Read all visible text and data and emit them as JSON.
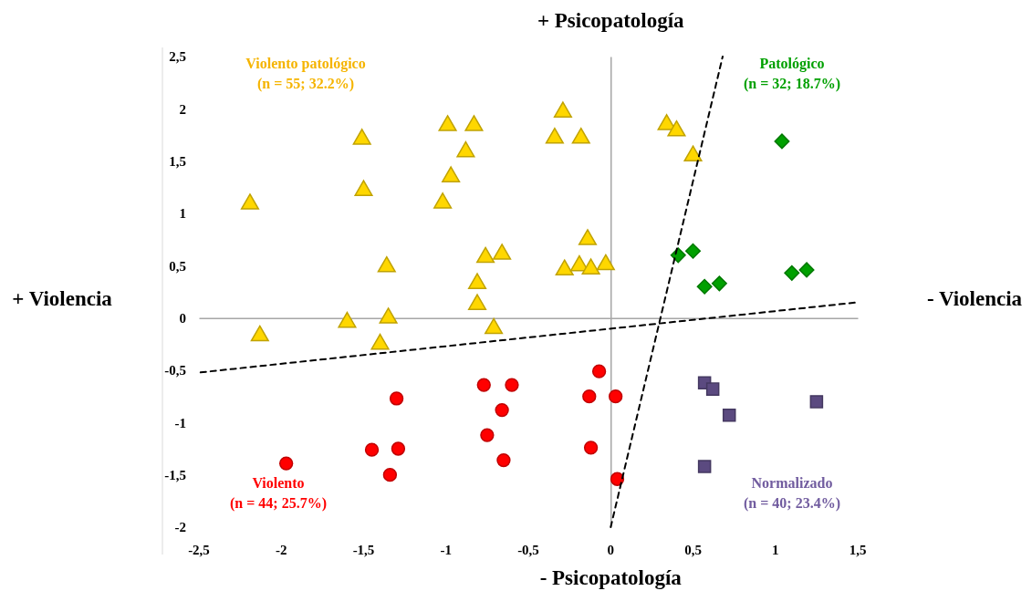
{
  "chart_data": {
    "type": "scatter",
    "annotations": [
      "+ Psicopatología",
      "- Psicopatología",
      "+ Violencia",
      "- Violencia"
    ],
    "xlim": [
      -2.5,
      1.5
    ],
    "xticks": [
      {
        "value": -2.5,
        "label": "-2,5"
      },
      -2,
      {
        "value": -1.5,
        "label": "-1,5"
      },
      -1,
      {
        "value": -0.5,
        "label": "-0,5"
      },
      0,
      {
        "value": 0.5,
        "label": "0,5"
      },
      1,
      {
        "value": 1.5,
        "label": "1,5"
      }
    ],
    "ylim": [
      -2,
      2.5
    ],
    "yticks": [
      -2,
      {
        "value": -1.5,
        "label": "-1,5"
      },
      -1,
      {
        "value": -0.5,
        "label": "-0,5"
      },
      0,
      {
        "value": 0.5,
        "label": "0,5"
      },
      1,
      {
        "value": 1.5,
        "label": "1,5"
      },
      2,
      {
        "value": 2.5,
        "label": "2,5"
      }
    ],
    "legend": false,
    "series": [
      {
        "name": "Violento patológico\n(n = 55; 32.2%)",
        "color": "#ffd700",
        "marker": "triangle",
        "x": [
          -2.19,
          -1.51,
          -1.5,
          -1.36,
          -1.35,
          -1.6,
          -0.99,
          -0.83,
          -0.88,
          -0.97,
          -1.02,
          -0.76,
          -0.66,
          -0.81,
          -0.81,
          -0.71,
          -0.29,
          -0.34,
          -0.18,
          -0.14,
          -0.28,
          -0.19,
          -0.12,
          -0.03,
          -2.13,
          -1.4,
          0.34,
          0.4,
          0.5
        ],
        "values": [
          1.09,
          1.71,
          1.22,
          0.49,
          0.0,
          -0.04,
          1.84,
          1.84,
          1.59,
          1.35,
          1.1,
          0.58,
          0.61,
          0.33,
          0.13,
          -0.1,
          1.97,
          1.72,
          1.72,
          0.75,
          0.46,
          0.5,
          0.47,
          0.51,
          -0.17,
          -0.25,
          1.85,
          1.79,
          1.55
        ]
      },
      {
        "name": "Patológico\n(n = 32; 18.7%)",
        "color": "#00a000",
        "marker": "diamond",
        "x": [
          1.04,
          0.41,
          0.5,
          0.57,
          0.66,
          1.1,
          1.19
        ],
        "values": [
          1.69,
          0.6,
          0.64,
          0.3,
          0.33,
          0.43,
          0.46
        ]
      },
      {
        "name": "Violento\n(n = 44; 25.7%)",
        "color": "#ff0000",
        "marker": "circle",
        "x": [
          -1.97,
          -1.3,
          -1.45,
          -1.29,
          -1.34,
          -0.77,
          -0.6,
          -0.66,
          -0.75,
          -0.65,
          -0.07,
          -0.13,
          -0.12,
          0.03,
          0.04
        ],
        "values": [
          -1.39,
          -0.77,
          -1.26,
          -1.25,
          -1.5,
          -0.64,
          -0.64,
          -0.88,
          -1.12,
          -1.36,
          -0.51,
          -0.75,
          -1.24,
          -0.75,
          -1.54
        ]
      },
      {
        "name": "Normalizado\n(n = 40; 23.4%)",
        "color": "#5b4a80",
        "marker": "square",
        "x": [
          0.57,
          0.62,
          0.72,
          1.25,
          0.57
        ],
        "values": [
          -0.62,
          -0.68,
          -0.93,
          -0.8,
          -1.42
        ]
      },
      {
        "type": "line",
        "color": "#000000",
        "marker": "none",
        "line_style": "dashed",
        "x": [
          -2.49,
          1.5
        ],
        "values": [
          -0.52,
          0.15
        ]
      },
      {
        "type": "line",
        "color": "#000000",
        "marker": "none",
        "line_style": "dashed",
        "x": [
          0,
          0.68
        ],
        "values": [
          -2,
          2.5
        ]
      }
    ]
  }
}
